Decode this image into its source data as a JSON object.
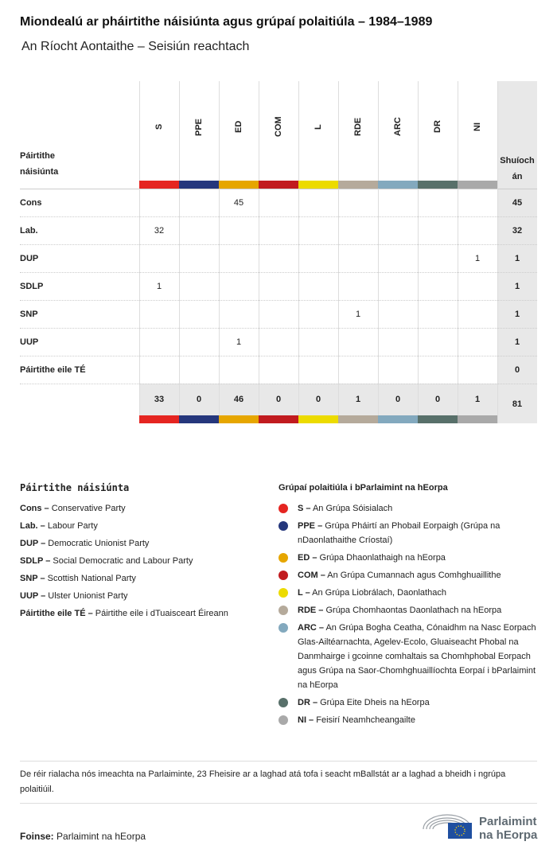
{
  "title": "Miondealú ar pháirtithe náisiúnta agus grúpaí polaitiúla – 1984–1989",
  "subtitle": "An Ríocht Aontaithe – Seisiún reachtach",
  "chart_data": {
    "type": "table",
    "row_header": "Páirtithe náisiúnta",
    "total_header": "Shuíochán",
    "groups": [
      {
        "code": "S",
        "color": "#e52521"
      },
      {
        "code": "PPE",
        "color": "#25377c"
      },
      {
        "code": "ED",
        "color": "#e6a600"
      },
      {
        "code": "COM",
        "color": "#c11b1f"
      },
      {
        "code": "L",
        "color": "#ecdb00"
      },
      {
        "code": "RDE",
        "color": "#b5aa9b"
      },
      {
        "code": "ARC",
        "color": "#83a9be"
      },
      {
        "code": "DR",
        "color": "#58706a"
      },
      {
        "code": "NI",
        "color": "#a9a9a9"
      }
    ],
    "rows": [
      {
        "party": "Cons",
        "values": [
          null,
          null,
          45,
          null,
          null,
          null,
          null,
          null,
          null
        ],
        "total": 45
      },
      {
        "party": "Lab.",
        "values": [
          32,
          null,
          null,
          null,
          null,
          null,
          null,
          null,
          null
        ],
        "total": 32
      },
      {
        "party": "DUP",
        "values": [
          null,
          null,
          null,
          null,
          null,
          null,
          null,
          null,
          1
        ],
        "total": 1
      },
      {
        "party": "SDLP",
        "values": [
          1,
          null,
          null,
          null,
          null,
          null,
          null,
          null,
          null
        ],
        "total": 1
      },
      {
        "party": "SNP",
        "values": [
          null,
          null,
          null,
          null,
          null,
          1,
          null,
          null,
          null
        ],
        "total": 1
      },
      {
        "party": "UUP",
        "values": [
          null,
          null,
          1,
          null,
          null,
          null,
          null,
          null,
          null
        ],
        "total": 1
      },
      {
        "party": "Páirtithe eile TÉ",
        "values": [
          null,
          null,
          null,
          null,
          null,
          null,
          null,
          null,
          null
        ],
        "total": 0
      }
    ],
    "totals": [
      33,
      0,
      46,
      0,
      0,
      1,
      0,
      0,
      1
    ],
    "grand_total": 81
  },
  "legend_parties": {
    "title": "Páirtithe náisiúnta",
    "items": [
      {
        "code": "Cons –",
        "name": "Conservative Party"
      },
      {
        "code": "Lab. –",
        "name": "Labour Party"
      },
      {
        "code": "DUP –",
        "name": "Democratic Unionist Party"
      },
      {
        "code": "SDLP –",
        "name": "Social Democratic and Labour Party"
      },
      {
        "code": "SNP –",
        "name": "Scottish National Party"
      },
      {
        "code": "UUP –",
        "name": "Ulster Unionist Party"
      },
      {
        "code": "Páirtithe eile TÉ –",
        "name": "Páirtithe eile i dTuaisceart Éireann"
      }
    ]
  },
  "legend_groups": {
    "title": "Grúpaí polaitiúla i bParlaimint na hEorpa",
    "items": [
      {
        "code": "S –",
        "name": "An Grúpa Sóisialach"
      },
      {
        "code": "PPE –",
        "name": "Grúpa Pháirtí an Phobail Eorpaigh (Grúpa na nDaonlathaithe Críostaí)"
      },
      {
        "code": "ED –",
        "name": "Grúpa Dhaonlathaigh na hEorpa"
      },
      {
        "code": "COM –",
        "name": "An Grúpa Cumannach agus Comhghuaillithe"
      },
      {
        "code": "L –",
        "name": "An Grúpa Liobrálach, Daonlathach"
      },
      {
        "code": "RDE –",
        "name": "Grúpa Chomhaontas Daonlathach na hEorpa"
      },
      {
        "code": "ARC –",
        "name": "An Grúpa Bogha Ceatha, Cónaidhm na Nasc Eorpach Glas-Ailtéarnachta, Agelev-Ecolo, Gluaiseacht Phobal na Danmhairge i gcoinne comhaltais sa Chomhphobal Eorpach agus Grúpa na Saor-Chomhghuaillíochta Eorpaí i bParlaimint na hEorpa"
      },
      {
        "code": "DR –",
        "name": "Grúpa Eite Dheis na hEorpa"
      },
      {
        "code": "NI –",
        "name": "Feisirí Neamhcheangailte"
      }
    ]
  },
  "note": "De réir rialacha nós imeachta na Parlaiminte, 23 Fheisire ar a laghad atá tofa i seacht mBallstát ar a laghad a bheidh i ngrúpa polaitiúil.",
  "source_label": "Foinse:",
  "source": "Parlaimint na hEorpa",
  "logo_text": "Parlaimint na hEorpa"
}
